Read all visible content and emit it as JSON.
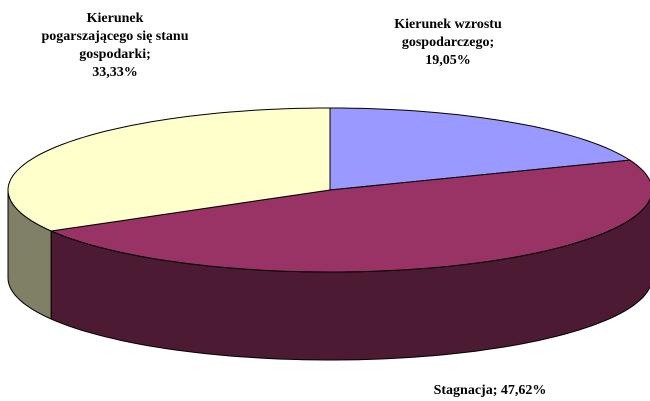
{
  "chart_data": {
    "type": "pie",
    "categories": [
      "Kierunek wzrostu gospodarczego;",
      "Stagnacja;",
      "Kierunek pogarszającego się stanu gospodarki;"
    ],
    "values": [
      19.05,
      47.62,
      33.33
    ],
    "value_labels": [
      "19,05%",
      "47,62%",
      "33,33%"
    ],
    "colors": [
      "#9999ff",
      "#993366",
      "#ffffcc"
    ],
    "side_colors": [
      "#4c4c80",
      "#4d1a33",
      "#808066"
    ]
  }
}
